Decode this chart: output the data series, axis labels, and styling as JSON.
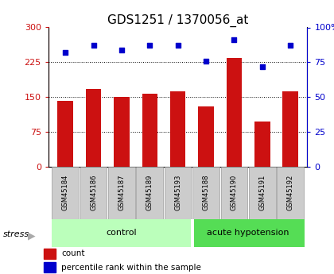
{
  "title": "GDS1251 / 1370056_at",
  "samples": [
    "GSM45184",
    "GSM45186",
    "GSM45187",
    "GSM45189",
    "GSM45193",
    "GSM45188",
    "GSM45190",
    "GSM45191",
    "GSM45192"
  ],
  "counts": [
    143,
    168,
    151,
    158,
    163,
    131,
    235,
    98,
    163
  ],
  "percentile": [
    82,
    87,
    84,
    87,
    87,
    76,
    91,
    72,
    87
  ],
  "ylim_left": [
    0,
    300
  ],
  "ylim_right": [
    0,
    100
  ],
  "yticks_left": [
    0,
    75,
    150,
    225,
    300
  ],
  "yticks_right": [
    0,
    25,
    50,
    75,
    100
  ],
  "ytick_labels_left": [
    "0",
    "75",
    "150",
    "225",
    "300"
  ],
  "ytick_labels_right": [
    "0",
    "25",
    "50",
    "75",
    "100%"
  ],
  "bar_color": "#cc1111",
  "dot_color": "#0000cc",
  "label_bg": "#cccccc",
  "control_bg": "#bbffbb",
  "acute_bg": "#55dd55",
  "group_labels": [
    "control",
    "acute hypotension"
  ],
  "n_control": 5,
  "n_acute": 4,
  "legend_count": "count",
  "legend_percentile": "percentile rank within the sample",
  "title_fontsize": 11,
  "tick_fontsize": 8,
  "stress_label": "stress"
}
